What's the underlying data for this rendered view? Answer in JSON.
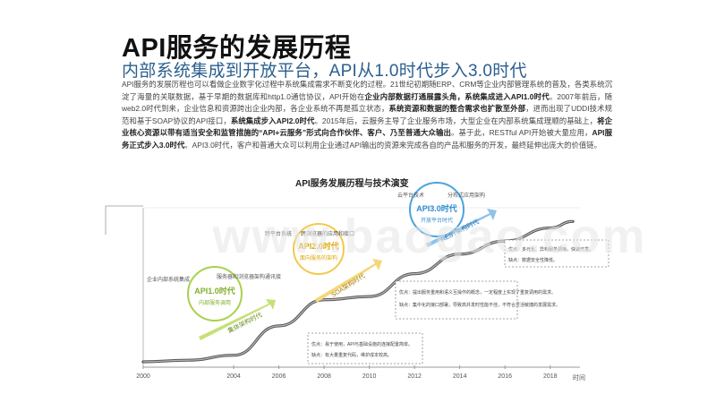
{
  "title": "API服务的发展历程",
  "subtitle": "内部系统集成到开放平台，API从1.0时代步入3.0时代",
  "body": {
    "p1": "API服务的发展历程也可以看做企业数字化过程中系统集成需求不断变化的过程。21世纪初期随ERP、CRM等企业内部管理系统的普及，各类系统沉淀了海量的关联数据，基于早期的数据库和http1.0通信协议，API开始在",
    "p1b": "企业内部数据打通展露头角，系统集成进入API1.0时代",
    "p2": "。2007年前后，随web2.0时代到来，企业信息和资源跨出企业内部，各企业系统不再是孤立状态，",
    "p2b": "系统资源和数据的整合需求也扩散至外部",
    "p3": "，进而出现了UDDI技术规范和基于SOAP协议的API接口，",
    "p3b": "系统集成步入API2.0时代",
    "p4": "。2015年后，云服务主导了企业服务市场，大型企业在内部系统集成理顺的基础上，",
    "p4b": "将企业核心资源以带有适当安全和监管措施的“API+云服务”形式向合作伙伴、客户、乃至普通大众输出",
    "p5": "。基于此，RESTful API开始被大量应用，",
    "p5b": "API服务正式步入3.0时代",
    "p6": "。API3.0时代，客户和普通大众可以利用企业通过API输出的资源来完成各自的产品和服务的开发，最终延伸出庞大的价值链。"
  },
  "chart_data": {
    "type": "line",
    "title": "API服务发展历程与技术演变",
    "x": [
      2000,
      2002,
      2004,
      2006,
      2008,
      2010,
      2012,
      2014,
      2016,
      2018,
      2019
    ],
    "y": [
      0,
      1,
      4,
      22,
      38,
      40,
      54,
      66,
      74,
      82,
      86
    ],
    "xlabel": "时间",
    "ticks": [
      "2000",
      "2004",
      "2006",
      "2008",
      "2010",
      "2012",
      "2014",
      "2016",
      "2018"
    ],
    "eras": [
      {
        "name": "API1.0时代",
        "sub": "内部服务调用"
      },
      {
        "name": "API2.0时代",
        "sub": "面向服务的架构"
      },
      {
        "name": "API3.0时代",
        "sub": "开放平台时代"
      }
    ],
    "arrows": [
      "集体架构时代",
      "SOA架构时代",
      "REST架构时代"
    ],
    "tech_labels": [
      "企业内部系统集成",
      "服务器和浏览器架构通讯接",
      "跨平台系统",
      "跨浏览器的应用和接口",
      "云平台技术",
      "分布式应用架构"
    ],
    "notes": [
      {
        "t": "优点：易于使用，API与基础设施的连接配置简单。",
        "c": "缺点：有大量重复代码，维护成本较高。"
      },
      {
        "t": "优点：提出服务重用和语义互操作的概念，一定程度上实现了重复调用的需求。",
        "c": "缺点：集中化的接口部署，导致高并发时性能不佳，不符合灵活敏捷的发展需求。"
      },
      {
        "t": "优点：多元化、异构服务调用，快速开发。",
        "c": "缺点：数据安全性降低。"
      }
    ]
  },
  "watermark": "www.baogao.com"
}
